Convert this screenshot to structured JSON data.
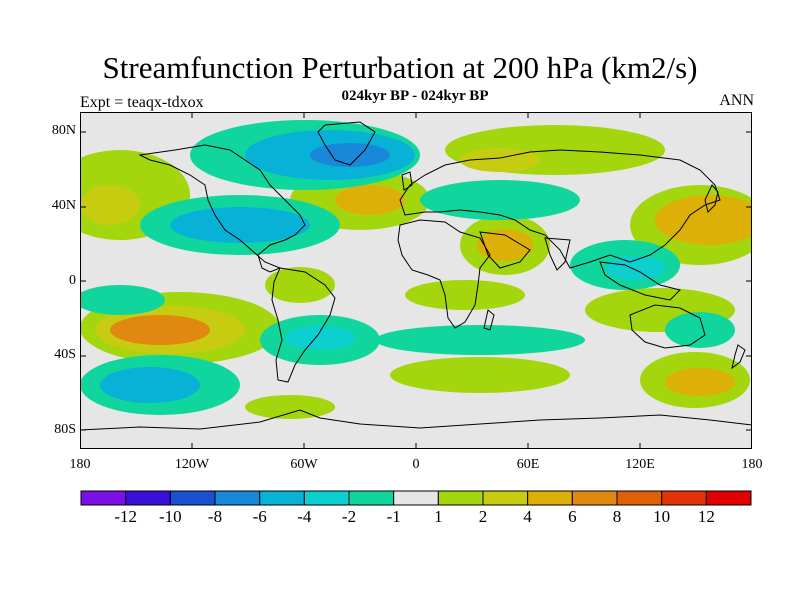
{
  "title": "Streamfunction Perturbation at 200 hPa (km2/s)",
  "subtitle": "024kyr BP - 024kyr BP",
  "left_label": "Expt = teaqx-tdxox",
  "right_label": "ANN",
  "lat_labels": [
    "80N",
    "40N",
    "0",
    "40S",
    "80S"
  ],
  "lon_labels": [
    "180",
    "120W",
    "60W",
    "0",
    "60E",
    "120E",
    "180"
  ],
  "colorbar": {
    "colors": [
      "#7a10e6",
      "#3a10d8",
      "#1a50d2",
      "#1a88d8",
      "#08b2d6",
      "#0ccfd0",
      "#10d69e",
      "#e6e6e6",
      "#a4d60e",
      "#c8cc10",
      "#dcb008",
      "#e08810",
      "#e06008",
      "#e03408",
      "#e00000"
    ],
    "labels": [
      "-12",
      "-10",
      "-8",
      "-6",
      "-4",
      "-2",
      "-1",
      "1",
      "2",
      "4",
      "6",
      "8",
      "10",
      "12"
    ]
  },
  "field_colors": {
    "neutral": "#e6e6e6",
    "pos1": "#a4d60e",
    "pos2": "#c8cc10",
    "pos3": "#dcb008",
    "pos4": "#e08810",
    "neg1": "#10d69e",
    "neg2": "#0ccfd0",
    "neg3": "#08b2d6",
    "neg4": "#1a88d8",
    "coast": "#000000"
  }
}
